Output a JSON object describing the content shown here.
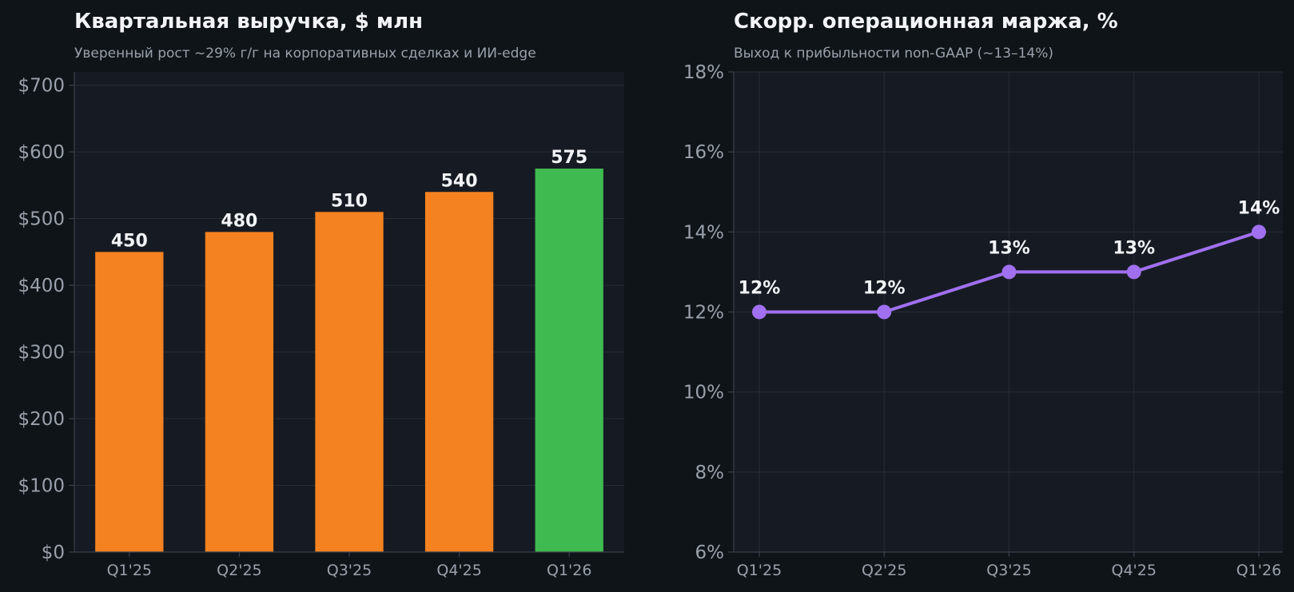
{
  "chart_data": [
    {
      "type": "bar",
      "title": "Квартальная выручка, $ млн",
      "subtitle": "Уверенный рост ~29% г/г на корпоративных сделках и ИИ-edge",
      "categories": [
        "Q1'25",
        "Q2'25",
        "Q3'25",
        "Q4'25",
        "Q1'26"
      ],
      "values": [
        450,
        480,
        510,
        540,
        575
      ],
      "data_labels": [
        "450",
        "480",
        "510",
        "540",
        "575"
      ],
      "bar_colors": [
        "#f58220",
        "#f58220",
        "#f58220",
        "#f58220",
        "#3fba50"
      ],
      "ylim": [
        0,
        720
      ],
      "yticks": [
        0,
        100,
        200,
        300,
        400,
        500,
        600,
        700
      ],
      "ytick_labels": [
        "$0",
        "$100",
        "$200",
        "$300",
        "$400",
        "$500",
        "$600",
        "$700"
      ],
      "grid": true
    },
    {
      "type": "line",
      "title": "Скорр. операционная маржа, %",
      "subtitle": "Выход к прибыльности non-GAAP (~13–14%)",
      "categories": [
        "Q1'25",
        "Q2'25",
        "Q3'25",
        "Q4'25",
        "Q1'26"
      ],
      "values": [
        12,
        12,
        13,
        13,
        14
      ],
      "data_labels": [
        "12%",
        "12%",
        "13%",
        "13%",
        "14%"
      ],
      "line_color": "#a070f0",
      "ylim": [
        6,
        18
      ],
      "yticks": [
        6,
        8,
        10,
        12,
        14,
        16,
        18
      ],
      "ytick_labels": [
        "6%",
        "8%",
        "10%",
        "12%",
        "14%",
        "16%",
        "18%"
      ],
      "grid": true
    }
  ]
}
